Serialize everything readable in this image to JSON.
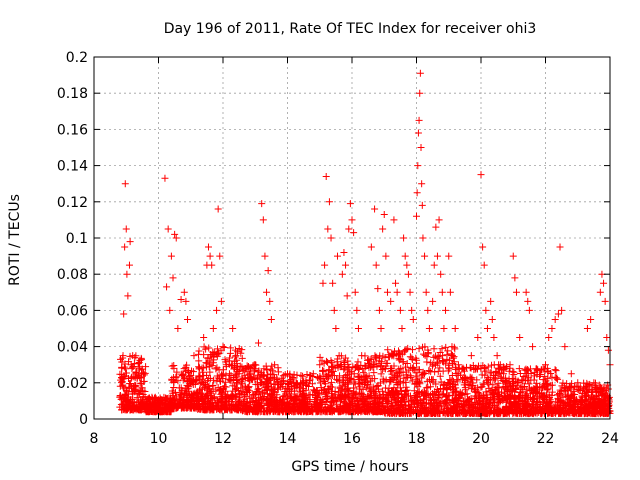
{
  "chart_data": {
    "type": "scatter",
    "title": "Day 196 of 2011, Rate Of TEC Index for receiver ohi3",
    "xlabel": "GPS time / hours",
    "ylabel": "ROTI / TECUs",
    "xlim": [
      8,
      24
    ],
    "ylim": [
      0,
      0.2
    ],
    "x_ticks": [
      8,
      10,
      12,
      14,
      16,
      18,
      20,
      22,
      24
    ],
    "y_ticks": [
      0,
      0.02,
      0.04,
      0.06,
      0.08,
      0.1,
      0.12,
      0.14,
      0.16,
      0.18,
      0.2
    ],
    "x_tick_labels": [
      "8",
      "10",
      "12",
      "14",
      "16",
      "18",
      "20",
      "22",
      "24"
    ],
    "y_tick_labels": [
      "0",
      "0.02",
      "0.04",
      "0.06",
      "0.08",
      "0.1",
      "0.12",
      "0.14",
      "0.16",
      "0.18",
      "0.2"
    ],
    "grid": true,
    "marker": "+",
    "marker_color": "#ff0000",
    "series": [
      {
        "points": [
          [
            8.8,
            0.012
          ],
          [
            8.85,
            0.008
          ],
          [
            8.9,
            0.035
          ],
          [
            8.92,
            0.058
          ],
          [
            8.95,
            0.095
          ],
          [
            8.97,
            0.13
          ],
          [
            9.0,
            0.105
          ],
          [
            9.02,
            0.08
          ],
          [
            9.05,
            0.068
          ],
          [
            9.1,
            0.085
          ],
          [
            9.12,
            0.098
          ],
          [
            9.15,
            0.03
          ],
          [
            9.2,
            0.035
          ],
          [
            9.3,
            0.025
          ],
          [
            9.4,
            0.015
          ],
          [
            9.5,
            0.008
          ],
          [
            9.6,
            0.006
          ],
          [
            9.8,
            0.007
          ],
          [
            9.9,
            0.012
          ],
          [
            10.0,
            0.01
          ],
          [
            10.2,
            0.133
          ],
          [
            10.25,
            0.073
          ],
          [
            10.3,
            0.105
          ],
          [
            10.35,
            0.06
          ],
          [
            10.4,
            0.09
          ],
          [
            10.45,
            0.078
          ],
          [
            10.5,
            0.102
          ],
          [
            10.55,
            0.1
          ],
          [
            10.6,
            0.05
          ],
          [
            10.7,
            0.066
          ],
          [
            10.8,
            0.07
          ],
          [
            10.85,
            0.065
          ],
          [
            10.9,
            0.055
          ],
          [
            11.0,
            0.02
          ],
          [
            11.1,
            0.035
          ],
          [
            11.2,
            0.015
          ],
          [
            11.4,
            0.045
          ],
          [
            11.5,
            0.085
          ],
          [
            11.55,
            0.095
          ],
          [
            11.6,
            0.09
          ],
          [
            11.65,
            0.085
          ],
          [
            11.7,
            0.05
          ],
          [
            11.8,
            0.06
          ],
          [
            11.85,
            0.116
          ],
          [
            11.9,
            0.09
          ],
          [
            11.95,
            0.065
          ],
          [
            12.0,
            0.04
          ],
          [
            12.1,
            0.03
          ],
          [
            12.2,
            0.025
          ],
          [
            12.3,
            0.05
          ],
          [
            12.4,
            0.035
          ],
          [
            12.5,
            0.025
          ],
          [
            13.0,
            0.03
          ],
          [
            13.1,
            0.042
          ],
          [
            13.2,
            0.119
          ],
          [
            13.25,
            0.11
          ],
          [
            13.3,
            0.09
          ],
          [
            13.35,
            0.07
          ],
          [
            13.4,
            0.082
          ],
          [
            13.45,
            0.065
          ],
          [
            13.5,
            0.055
          ],
          [
            13.6,
            0.03
          ],
          [
            13.7,
            0.02
          ],
          [
            14.0,
            0.025
          ],
          [
            14.2,
            0.02
          ],
          [
            14.4,
            0.015
          ],
          [
            14.6,
            0.02
          ],
          [
            14.8,
            0.025
          ],
          [
            15.0,
            0.03
          ],
          [
            15.1,
            0.075
          ],
          [
            15.15,
            0.085
          ],
          [
            15.2,
            0.134
          ],
          [
            15.25,
            0.105
          ],
          [
            15.3,
            0.12
          ],
          [
            15.35,
            0.1
          ],
          [
            15.4,
            0.075
          ],
          [
            15.45,
            0.06
          ],
          [
            15.5,
            0.05
          ],
          [
            15.55,
            0.09
          ],
          [
            15.6,
            0.035
          ],
          [
            15.7,
            0.08
          ],
          [
            15.75,
            0.092
          ],
          [
            15.8,
            0.085
          ],
          [
            15.85,
            0.068
          ],
          [
            15.9,
            0.105
          ],
          [
            15.95,
            0.119
          ],
          [
            16.0,
            0.11
          ],
          [
            16.05,
            0.103
          ],
          [
            16.1,
            0.07
          ],
          [
            16.15,
            0.06
          ],
          [
            16.2,
            0.05
          ],
          [
            16.3,
            0.035
          ],
          [
            16.6,
            0.095
          ],
          [
            16.7,
            0.116
          ],
          [
            16.75,
            0.085
          ],
          [
            16.8,
            0.072
          ],
          [
            16.85,
            0.06
          ],
          [
            16.9,
            0.05
          ],
          [
            16.95,
            0.105
          ],
          [
            17.0,
            0.113
          ],
          [
            17.05,
            0.09
          ],
          [
            17.1,
            0.07
          ],
          [
            17.2,
            0.065
          ],
          [
            17.3,
            0.11
          ],
          [
            17.35,
            0.075
          ],
          [
            17.4,
            0.07
          ],
          [
            17.5,
            0.06
          ],
          [
            17.55,
            0.05
          ],
          [
            17.6,
            0.1
          ],
          [
            17.65,
            0.09
          ],
          [
            17.7,
            0.085
          ],
          [
            17.75,
            0.08
          ],
          [
            17.8,
            0.07
          ],
          [
            17.85,
            0.06
          ],
          [
            17.9,
            0.055
          ],
          [
            18.0,
            0.112
          ],
          [
            18.02,
            0.125
          ],
          [
            18.04,
            0.14
          ],
          [
            18.06,
            0.158
          ],
          [
            18.08,
            0.165
          ],
          [
            18.1,
            0.18
          ],
          [
            18.12,
            0.191
          ],
          [
            18.14,
            0.15
          ],
          [
            18.16,
            0.13
          ],
          [
            18.18,
            0.118
          ],
          [
            18.2,
            0.1
          ],
          [
            18.25,
            0.09
          ],
          [
            18.3,
            0.07
          ],
          [
            18.35,
            0.06
          ],
          [
            18.4,
            0.05
          ],
          [
            18.5,
            0.065
          ],
          [
            18.55,
            0.085
          ],
          [
            18.6,
            0.106
          ],
          [
            18.65,
            0.09
          ],
          [
            18.7,
            0.11
          ],
          [
            18.75,
            0.08
          ],
          [
            18.8,
            0.07
          ],
          [
            18.85,
            0.05
          ],
          [
            18.9,
            0.06
          ],
          [
            19.0,
            0.09
          ],
          [
            19.05,
            0.07
          ],
          [
            19.1,
            0.04
          ],
          [
            19.2,
            0.05
          ],
          [
            19.3,
            0.03
          ],
          [
            19.5,
            0.02
          ],
          [
            19.7,
            0.035
          ],
          [
            19.9,
            0.045
          ],
          [
            20.0,
            0.135
          ],
          [
            20.05,
            0.095
          ],
          [
            20.1,
            0.085
          ],
          [
            20.15,
            0.06
          ],
          [
            20.2,
            0.05
          ],
          [
            20.3,
            0.065
          ],
          [
            20.35,
            0.055
          ],
          [
            20.4,
            0.045
          ],
          [
            20.5,
            0.035
          ],
          [
            20.6,
            0.03
          ],
          [
            20.7,
            0.025
          ],
          [
            20.9,
            0.03
          ],
          [
            21.0,
            0.09
          ],
          [
            21.05,
            0.078
          ],
          [
            21.1,
            0.07
          ],
          [
            21.2,
            0.045
          ],
          [
            21.4,
            0.07
          ],
          [
            21.45,
            0.065
          ],
          [
            21.5,
            0.06
          ],
          [
            21.6,
            0.04
          ],
          [
            22.0,
            0.03
          ],
          [
            22.1,
            0.045
          ],
          [
            22.2,
            0.05
          ],
          [
            22.3,
            0.055
          ],
          [
            22.4,
            0.058
          ],
          [
            22.45,
            0.095
          ],
          [
            22.5,
            0.06
          ],
          [
            22.6,
            0.04
          ],
          [
            22.8,
            0.025
          ],
          [
            23.0,
            0.02
          ],
          [
            23.3,
            0.05
          ],
          [
            23.4,
            0.055
          ],
          [
            23.5,
            0.02
          ],
          [
            23.7,
            0.07
          ],
          [
            23.75,
            0.08
          ],
          [
            23.8,
            0.075
          ],
          [
            23.85,
            0.065
          ],
          [
            23.9,
            0.045
          ],
          [
            23.95,
            0.038
          ],
          [
            24.0,
            0.03
          ]
        ],
        "baseline": {
          "x_start": 8.8,
          "x_end": 24.0,
          "segments": [
            {
              "x": [
                8.8,
                9.6
              ],
              "y": [
                0.005,
                0.035
              ]
            },
            {
              "x": [
                9.6,
                10.4
              ],
              "y": [
                0.004,
                0.012
              ]
            },
            {
              "x": [
                10.4,
                11.2
              ],
              "y": [
                0.006,
                0.03
              ]
            },
            {
              "x": [
                11.2,
                12.6
              ],
              "y": [
                0.005,
                0.04
              ]
            },
            {
              "x": [
                12.6,
                13.8
              ],
              "y": [
                0.004,
                0.03
              ]
            },
            {
              "x": [
                13.8,
                15.0
              ],
              "y": [
                0.004,
                0.025
              ]
            },
            {
              "x": [
                15.0,
                17.0
              ],
              "y": [
                0.004,
                0.035
              ]
            },
            {
              "x": [
                17.0,
                19.2
              ],
              "y": [
                0.003,
                0.04
              ]
            },
            {
              "x": [
                19.2,
                21.0
              ],
              "y": [
                0.003,
                0.03
              ]
            },
            {
              "x": [
                21.0,
                22.4
              ],
              "y": [
                0.003,
                0.028
              ]
            },
            {
              "x": [
                22.4,
                24.0
              ],
              "y": [
                0.003,
                0.02
              ]
            }
          ]
        }
      }
    ]
  }
}
